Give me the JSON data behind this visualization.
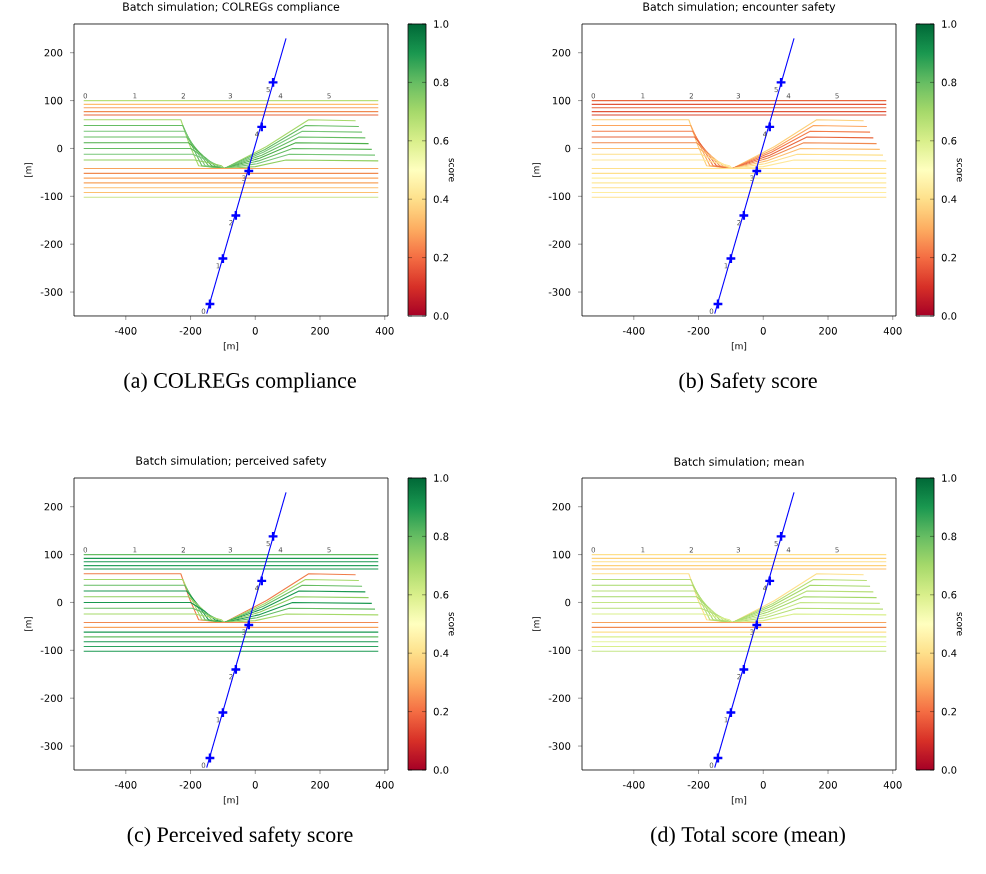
{
  "chart_data": [
    {
      "type": "line",
      "title": "Batch simulation; COLREGs compliance",
      "xlabel": "[m]",
      "ylabel": "[m]",
      "clabel": "score",
      "xlim": [
        -560,
        410
      ],
      "ylim": [
        -350,
        260
      ],
      "xticks": [
        -400,
        -200,
        0,
        200,
        400
      ],
      "yticks": [
        -300,
        -200,
        -100,
        0,
        100,
        200
      ],
      "clim": [
        0,
        1
      ],
      "cticks": [
        {
          "value": 0,
          "label": "0.0"
        },
        {
          "value": 0.2,
          "label": "0.2"
        },
        {
          "value": 0.4,
          "label": "0.4"
        },
        {
          "value": 0.6,
          "label": "0.6"
        },
        {
          "value": 0.8,
          "label": "0.8"
        },
        {
          "value": 1,
          "label": "1.0"
        }
      ],
      "annotations": [
        {
          "text": "0",
          "x": -525,
          "y": 110
        },
        {
          "text": "1",
          "x": -372,
          "y": 110
        },
        {
          "text": "2",
          "x": -222,
          "y": 110
        },
        {
          "text": "3",
          "x": -77,
          "y": 110
        },
        {
          "text": "4",
          "x": 78,
          "y": 110
        },
        {
          "text": "5",
          "x": 228,
          "y": 110
        },
        {
          "text": "0",
          "x": -160,
          "y": -340
        },
        {
          "text": "1",
          "x": -115,
          "y": -245
        },
        {
          "text": "2",
          "x": -75,
          "y": -155
        },
        {
          "text": "3",
          "x": -35,
          "y": -62
        },
        {
          "text": "4",
          "x": 5,
          "y": 30
        },
        {
          "text": "5",
          "x": 40,
          "y": 123
        },
        "(a) COLREGs compliance"
      ],
      "series": [
        {
          "x": [
            -530,
            380
          ],
          "values": [
            100,
            100
          ],
          "color": "#b7df78"
        },
        {
          "x": [
            -530,
            380
          ],
          "values": [
            92,
            92
          ],
          "color": "#fdbf6f"
        },
        {
          "x": [
            -530,
            380
          ],
          "values": [
            85,
            85
          ],
          "color": "#f7a35c"
        },
        {
          "x": [
            -530,
            380
          ],
          "values": [
            77,
            77
          ],
          "color": "#f08a50"
        },
        {
          "x": [
            -530,
            380
          ],
          "values": [
            70,
            70
          ],
          "color": "#e8663c"
        },
        {
          "x": [
            -530,
            -230,
            -205,
            -175,
            -95,
            35,
            165,
            310
          ],
          "values": [
            60,
            60,
            11,
            -36,
            -42,
            4,
            60,
            58
          ],
          "color": "#a6d96a"
        },
        {
          "x": [
            -530,
            -224,
            -195,
            -165,
            -95,
            30,
            155,
            320
          ],
          "values": [
            48,
            48,
            5,
            -36,
            -42,
            -2,
            48,
            46
          ],
          "color": "#66bd63"
        },
        {
          "x": [
            -530,
            -218,
            -185,
            -155,
            -95,
            25,
            145,
            330
          ],
          "values": [
            36,
            36,
            -1,
            -36,
            -42,
            -8,
            36,
            34
          ],
          "color": "#78c679"
        },
        {
          "x": [
            -530,
            -212,
            -175,
            -145,
            -95,
            20,
            135,
            340
          ],
          "values": [
            24,
            24,
            -7,
            -36,
            -42,
            -14,
            24,
            22
          ],
          "color": "#66bd63"
        },
        {
          "x": [
            -530,
            -206,
            -165,
            -135,
            -95,
            15,
            125,
            350
          ],
          "values": [
            12,
            12,
            -13,
            -36,
            -42,
            -20,
            12,
            10
          ],
          "color": "#4daf4a"
        },
        {
          "x": [
            -530,
            -200,
            -155,
            -125,
            -95,
            10,
            115,
            360
          ],
          "values": [
            0,
            0,
            -19,
            -36,
            -42,
            -26,
            0,
            -2
          ],
          "color": "#66bd63"
        },
        {
          "x": [
            -530,
            -194,
            -145,
            -115,
            -95,
            5,
            105,
            370
          ],
          "values": [
            -12,
            -12,
            -25,
            -36,
            -42,
            -32,
            -12,
            -14
          ],
          "color": "#78c679"
        },
        {
          "x": [
            -530,
            -188,
            -135,
            -105,
            -95,
            0,
            95,
            380
          ],
          "values": [
            -24,
            -24,
            -31,
            -36,
            -42,
            -38,
            -24,
            -26
          ],
          "color": "#91cf60"
        },
        {
          "x": [
            -530,
            380
          ],
          "values": [
            -42,
            -42
          ],
          "color": "#f7a35c"
        },
        {
          "x": [
            -530,
            380
          ],
          "values": [
            -52,
            -52
          ],
          "color": "#f08a50"
        },
        {
          "x": [
            -530,
            380
          ],
          "values": [
            -62,
            -62
          ],
          "color": "#fca55d"
        },
        {
          "x": [
            -530,
            380
          ],
          "values": [
            -72,
            -72
          ],
          "color": "#f7a35c"
        },
        {
          "x": [
            -530,
            380
          ],
          "values": [
            -82,
            -82
          ],
          "color": "#fdbf6f"
        },
        {
          "x": [
            -530,
            380
          ],
          "values": [
            -92,
            -92
          ],
          "color": "#fdbf6f"
        },
        {
          "x": [
            -530,
            380
          ],
          "values": [
            -102,
            -102
          ],
          "color": "#c9e38a"
        },
        {
          "x": [
            -150,
            95
          ],
          "values": [
            -345,
            230
          ],
          "color": "#0000ff"
        },
        {
          "type": "scatter",
          "marker": "cross",
          "x": [
            -140,
            -100,
            -60,
            -20,
            20,
            55
          ],
          "values": [
            -325,
            -230,
            -140,
            -47,
            45,
            138
          ],
          "color": "#0000ff"
        }
      ]
    },
    {
      "type": "line",
      "title": "Batch simulation; encounter safety",
      "xlabel": "[m]",
      "ylabel": "[m]",
      "clabel": "score",
      "xlim": [
        -560,
        410
      ],
      "ylim": [
        -350,
        260
      ],
      "xticks": [
        -400,
        -200,
        0,
        200,
        400
      ],
      "yticks": [
        -300,
        -200,
        -100,
        0,
        100,
        200
      ],
      "clim": [
        0,
        1
      ],
      "cticks": [
        {
          "value": 0,
          "label": "0.0"
        },
        {
          "value": 0.2,
          "label": "0.2"
        },
        {
          "value": 0.4,
          "label": "0.4"
        },
        {
          "value": 0.6,
          "label": "0.6"
        },
        {
          "value": 0.8,
          "label": "0.8"
        },
        {
          "value": 1,
          "label": "1.0"
        }
      ],
      "annotations": [
        {
          "text": "0",
          "x": -525,
          "y": 110
        },
        {
          "text": "1",
          "x": -372,
          "y": 110
        },
        {
          "text": "2",
          "x": -222,
          "y": 110
        },
        {
          "text": "3",
          "x": -77,
          "y": 110
        },
        {
          "text": "4",
          "x": 78,
          "y": 110
        },
        {
          "text": "5",
          "x": 228,
          "y": 110
        },
        {
          "text": "0",
          "x": -160,
          "y": -340
        },
        {
          "text": "1",
          "x": -115,
          "y": -245
        },
        {
          "text": "2",
          "x": -75,
          "y": -155
        },
        {
          "text": "3",
          "x": -35,
          "y": -62
        },
        {
          "text": "4",
          "x": 5,
          "y": 30
        },
        {
          "text": "5",
          "x": 40,
          "y": 123
        },
        "(b) Safety score"
      ],
      "series": [
        {
          "x": [
            -530,
            380
          ],
          "values": [
            100,
            100
          ],
          "color": "#e8663c"
        },
        {
          "x": [
            -530,
            380
          ],
          "values": [
            92,
            92
          ],
          "color": "#e0553a"
        },
        {
          "x": [
            -530,
            380
          ],
          "values": [
            85,
            85
          ],
          "color": "#e8663c"
        },
        {
          "x": [
            -530,
            380
          ],
          "values": [
            77,
            77
          ],
          "color": "#e0553a"
        },
        {
          "x": [
            -530,
            380
          ],
          "values": [
            70,
            70
          ],
          "color": "#d9472f"
        },
        {
          "x": [
            -530,
            -230,
            -205,
            -175,
            -95,
            35,
            165,
            310
          ],
          "values": [
            60,
            60,
            11,
            -36,
            -42,
            4,
            60,
            58
          ],
          "color": "#fdd07a"
        },
        {
          "x": [
            -530,
            -224,
            -195,
            -165,
            -95,
            30,
            155,
            320
          ],
          "values": [
            48,
            48,
            5,
            -36,
            -42,
            -2,
            48,
            46
          ],
          "color": "#fca55d"
        },
        {
          "x": [
            -530,
            -218,
            -185,
            -155,
            -95,
            25,
            145,
            330
          ],
          "values": [
            36,
            36,
            -1,
            -36,
            -42,
            -8,
            36,
            34
          ],
          "color": "#f47d4c"
        },
        {
          "x": [
            -530,
            -212,
            -175,
            -145,
            -95,
            20,
            135,
            340
          ],
          "values": [
            24,
            24,
            -7,
            -36,
            -42,
            -14,
            24,
            22
          ],
          "color": "#e8663c"
        },
        {
          "x": [
            -530,
            -206,
            -165,
            -135,
            -95,
            15,
            125,
            350
          ],
          "values": [
            12,
            12,
            -13,
            -36,
            -42,
            -20,
            12,
            10
          ],
          "color": "#f08a50"
        },
        {
          "x": [
            -530,
            -200,
            -155,
            -125,
            -95,
            10,
            115,
            360
          ],
          "values": [
            0,
            0,
            -19,
            -36,
            -42,
            -26,
            0,
            -2
          ],
          "color": "#fdbf6f"
        },
        {
          "x": [
            -530,
            -194,
            -145,
            -115,
            -95,
            5,
            105,
            370
          ],
          "values": [
            -12,
            -12,
            -25,
            -36,
            -42,
            -32,
            -12,
            -14
          ],
          "color": "#fee08b"
        },
        {
          "x": [
            -530,
            -188,
            -135,
            -105,
            -95,
            0,
            95,
            380
          ],
          "values": [
            -24,
            -24,
            -31,
            -36,
            -42,
            -38,
            -24,
            -26
          ],
          "color": "#fee89a"
        },
        {
          "x": [
            -530,
            380
          ],
          "values": [
            -42,
            -42
          ],
          "color": "#fee08b"
        },
        {
          "x": [
            -530,
            380
          ],
          "values": [
            -52,
            -52
          ],
          "color": "#fee08b"
        },
        {
          "x": [
            -530,
            380
          ],
          "values": [
            -62,
            -62
          ],
          "color": "#fff0a0"
        },
        {
          "x": [
            -530,
            380
          ],
          "values": [
            -72,
            -72
          ],
          "color": "#fee89a"
        },
        {
          "x": [
            -530,
            380
          ],
          "values": [
            -82,
            -82
          ],
          "color": "#fee08b"
        },
        {
          "x": [
            -530,
            380
          ],
          "values": [
            -92,
            -92
          ],
          "color": "#ffeda0"
        },
        {
          "x": [
            -530,
            380
          ],
          "values": [
            -102,
            -102
          ],
          "color": "#fee08b"
        },
        {
          "x": [
            -150,
            95
          ],
          "values": [
            -345,
            230
          ],
          "color": "#0000ff"
        },
        {
          "type": "scatter",
          "marker": "cross",
          "x": [
            -140,
            -100,
            -60,
            -20,
            20,
            55
          ],
          "values": [
            -325,
            -230,
            -140,
            -47,
            45,
            138
          ],
          "color": "#0000ff"
        }
      ]
    },
    {
      "type": "line",
      "title": "Batch simulation; perceived safety",
      "xlabel": "[m]",
      "ylabel": "[m]",
      "clabel": "score",
      "xlim": [
        -560,
        410
      ],
      "ylim": [
        -350,
        260
      ],
      "xticks": [
        -400,
        -200,
        0,
        200,
        400
      ],
      "yticks": [
        -300,
        -200,
        -100,
        0,
        100,
        200
      ],
      "clim": [
        0,
        1
      ],
      "cticks": [
        {
          "value": 0,
          "label": "0.0"
        },
        {
          "value": 0.2,
          "label": "0.2"
        },
        {
          "value": 0.4,
          "label": "0.4"
        },
        {
          "value": 0.6,
          "label": "0.6"
        },
        {
          "value": 0.8,
          "label": "0.8"
        },
        {
          "value": 1,
          "label": "1.0"
        }
      ],
      "annotations": [
        {
          "text": "0",
          "x": -525,
          "y": 110
        },
        {
          "text": "1",
          "x": -372,
          "y": 110
        },
        {
          "text": "2",
          "x": -222,
          "y": 110
        },
        {
          "text": "3",
          "x": -77,
          "y": 110
        },
        {
          "text": "4",
          "x": 78,
          "y": 110
        },
        {
          "text": "5",
          "x": 228,
          "y": 110
        },
        {
          "text": "0",
          "x": -160,
          "y": -340
        },
        {
          "text": "1",
          "x": -115,
          "y": -245
        },
        {
          "text": "2",
          "x": -75,
          "y": -155
        },
        {
          "text": "3",
          "x": -35,
          "y": -62
        },
        {
          "text": "4",
          "x": 5,
          "y": 30
        },
        {
          "text": "5",
          "x": 40,
          "y": 123
        },
        "(c) Perceived safety score"
      ],
      "series": [
        {
          "x": [
            -530,
            380
          ],
          "values": [
            100,
            100
          ],
          "color": "#66bd63"
        },
        {
          "x": [
            -530,
            380
          ],
          "values": [
            92,
            92
          ],
          "color": "#1a9850"
        },
        {
          "x": [
            -530,
            380
          ],
          "values": [
            85,
            85
          ],
          "color": "#1a9850"
        },
        {
          "x": [
            -530,
            380
          ],
          "values": [
            77,
            77
          ],
          "color": "#2ca25f"
        },
        {
          "x": [
            -530,
            380
          ],
          "values": [
            70,
            70
          ],
          "color": "#1a9850"
        },
        {
          "x": [
            -530,
            -230,
            -205,
            -175,
            -95,
            35,
            165,
            310
          ],
          "values": [
            60,
            60,
            11,
            -36,
            -42,
            4,
            60,
            58
          ],
          "color": "#f07c4a"
        },
        {
          "x": [
            -530,
            -224,
            -195,
            -165,
            -95,
            30,
            155,
            320
          ],
          "values": [
            48,
            48,
            5,
            -36,
            -42,
            -2,
            48,
            46
          ],
          "color": "#a6d96a"
        },
        {
          "x": [
            -530,
            -218,
            -185,
            -155,
            -95,
            25,
            145,
            330
          ],
          "values": [
            36,
            36,
            -1,
            -36,
            -42,
            -8,
            36,
            34
          ],
          "color": "#66bd63"
        },
        {
          "x": [
            -530,
            -212,
            -175,
            -145,
            -95,
            20,
            135,
            340
          ],
          "values": [
            24,
            24,
            -7,
            -36,
            -42,
            -14,
            24,
            22
          ],
          "color": "#1a9850"
        },
        {
          "x": [
            -530,
            -206,
            -165,
            -135,
            -95,
            15,
            125,
            350
          ],
          "values": [
            12,
            12,
            -13,
            -36,
            -42,
            -20,
            12,
            10
          ],
          "color": "#91cf60"
        },
        {
          "x": [
            -530,
            -200,
            -155,
            -125,
            -95,
            10,
            115,
            360
          ],
          "values": [
            0,
            0,
            -19,
            -36,
            -42,
            -26,
            0,
            -2
          ],
          "color": "#1a9850"
        },
        {
          "x": [
            -530,
            -194,
            -145,
            -115,
            -95,
            5,
            105,
            370
          ],
          "values": [
            -12,
            -12,
            -25,
            -36,
            -42,
            -32,
            -12,
            -14
          ],
          "color": "#66bd63"
        },
        {
          "x": [
            -530,
            -188,
            -135,
            -105,
            -95,
            0,
            95,
            380
          ],
          "values": [
            -24,
            -24,
            -31,
            -36,
            -42,
            -38,
            -24,
            -26
          ],
          "color": "#a6d96a"
        },
        {
          "x": [
            -530,
            380
          ],
          "values": [
            -42,
            -42
          ],
          "color": "#f08a50"
        },
        {
          "x": [
            -530,
            380
          ],
          "values": [
            -52,
            -52
          ],
          "color": "#f7a35c"
        },
        {
          "x": [
            -530,
            380
          ],
          "values": [
            -62,
            -62
          ],
          "color": "#1a9850"
        },
        {
          "x": [
            -530,
            380
          ],
          "values": [
            -72,
            -72
          ],
          "color": "#66bd63"
        },
        {
          "x": [
            -530,
            380
          ],
          "values": [
            -82,
            -82
          ],
          "color": "#1a9850"
        },
        {
          "x": [
            -530,
            380
          ],
          "values": [
            -92,
            -92
          ],
          "color": "#2ca25f"
        },
        {
          "x": [
            -530,
            380
          ],
          "values": [
            -102,
            -102
          ],
          "color": "#1a9850"
        },
        {
          "x": [
            -150,
            95
          ],
          "values": [
            -345,
            230
          ],
          "color": "#0000ff"
        },
        {
          "type": "scatter",
          "marker": "cross",
          "x": [
            -140,
            -100,
            -60,
            -20,
            20,
            55
          ],
          "values": [
            -325,
            -230,
            -140,
            -47,
            45,
            138
          ],
          "color": "#0000ff"
        }
      ]
    },
    {
      "type": "line",
      "title": "Batch simulation; mean",
      "xlabel": "[m]",
      "ylabel": "[m]",
      "clabel": "score",
      "xlim": [
        -560,
        410
      ],
      "ylim": [
        -350,
        260
      ],
      "xticks": [
        -400,
        -200,
        0,
        200,
        400
      ],
      "yticks": [
        -300,
        -200,
        -100,
        0,
        100,
        200
      ],
      "clim": [
        0,
        1
      ],
      "cticks": [
        {
          "value": 0,
          "label": "0.0"
        },
        {
          "value": 0.2,
          "label": "0.2"
        },
        {
          "value": 0.4,
          "label": "0.4"
        },
        {
          "value": 0.6,
          "label": "0.6"
        },
        {
          "value": 0.8,
          "label": "0.8"
        },
        {
          "value": 1,
          "label": "1.0"
        }
      ],
      "annotations": [
        {
          "text": "0",
          "x": -525,
          "y": 110
        },
        {
          "text": "1",
          "x": -372,
          "y": 110
        },
        {
          "text": "2",
          "x": -222,
          "y": 110
        },
        {
          "text": "3",
          "x": -77,
          "y": 110
        },
        {
          "text": "4",
          "x": 78,
          "y": 110
        },
        {
          "text": "5",
          "x": 228,
          "y": 110
        },
        {
          "text": "0",
          "x": -160,
          "y": -340
        },
        {
          "text": "1",
          "x": -115,
          "y": -245
        },
        {
          "text": "2",
          "x": -75,
          "y": -155
        },
        {
          "text": "3",
          "x": -35,
          "y": -62
        },
        {
          "text": "4",
          "x": 5,
          "y": 30
        },
        {
          "text": "5",
          "x": 40,
          "y": 123
        },
        "(d) Total score (mean)"
      ],
      "series": [
        {
          "x": [
            -530,
            380
          ],
          "values": [
            100,
            100
          ],
          "color": "#fee08b"
        },
        {
          "x": [
            -530,
            380
          ],
          "values": [
            92,
            92
          ],
          "color": "#fdd17a"
        },
        {
          "x": [
            -530,
            380
          ],
          "values": [
            85,
            85
          ],
          "color": "#fee08b"
        },
        {
          "x": [
            -530,
            380
          ],
          "values": [
            77,
            77
          ],
          "color": "#fdd17a"
        },
        {
          "x": [
            -530,
            380
          ],
          "values": [
            70,
            70
          ],
          "color": "#fdc06a"
        },
        {
          "x": [
            -530,
            -230,
            -205,
            -175,
            -95,
            35,
            165,
            310
          ],
          "values": [
            60,
            60,
            11,
            -36,
            -42,
            4,
            60,
            58
          ],
          "color": "#fee08b"
        },
        {
          "x": [
            -530,
            -224,
            -195,
            -165,
            -95,
            30,
            155,
            320
          ],
          "values": [
            48,
            48,
            5,
            -36,
            -42,
            -2,
            48,
            46
          ],
          "color": "#b7df78"
        },
        {
          "x": [
            -530,
            -218,
            -185,
            -155,
            -95,
            25,
            145,
            330
          ],
          "values": [
            36,
            36,
            -1,
            -36,
            -42,
            -8,
            36,
            34
          ],
          "color": "#a6d96a"
        },
        {
          "x": [
            -530,
            -212,
            -175,
            -145,
            -95,
            20,
            135,
            340
          ],
          "values": [
            24,
            24,
            -7,
            -36,
            -42,
            -14,
            24,
            22
          ],
          "color": "#b7df78"
        },
        {
          "x": [
            -530,
            -206,
            -165,
            -135,
            -95,
            15,
            125,
            350
          ],
          "values": [
            12,
            12,
            -13,
            -36,
            -42,
            -20,
            12,
            10
          ],
          "color": "#a6d96a"
        },
        {
          "x": [
            -530,
            -200,
            -155,
            -125,
            -95,
            10,
            115,
            360
          ],
          "values": [
            0,
            0,
            -19,
            -36,
            -42,
            -26,
            0,
            -2
          ],
          "color": "#c4e687"
        },
        {
          "x": [
            -530,
            -194,
            -145,
            -115,
            -95,
            5,
            105,
            370
          ],
          "values": [
            -12,
            -12,
            -25,
            -36,
            -42,
            -32,
            -12,
            -14
          ],
          "color": "#b7df78"
        },
        {
          "x": [
            -530,
            -188,
            -135,
            -105,
            -95,
            0,
            95,
            380
          ],
          "values": [
            -24,
            -24,
            -31,
            -36,
            -42,
            -38,
            -24,
            -26
          ],
          "color": "#d9ef8b"
        },
        {
          "x": [
            -530,
            380
          ],
          "values": [
            -42,
            -42
          ],
          "color": "#f7a35c"
        },
        {
          "x": [
            -530,
            380
          ],
          "values": [
            -52,
            -52
          ],
          "color": "#f08a50"
        },
        {
          "x": [
            -530,
            380
          ],
          "values": [
            -62,
            -62
          ],
          "color": "#fee08b"
        },
        {
          "x": [
            -530,
            380
          ],
          "values": [
            -72,
            -72
          ],
          "color": "#d9ef8b"
        },
        {
          "x": [
            -530,
            380
          ],
          "values": [
            -82,
            -82
          ],
          "color": "#e6f59d"
        },
        {
          "x": [
            -530,
            380
          ],
          "values": [
            -92,
            -92
          ],
          "color": "#d9ef8b"
        },
        {
          "x": [
            -530,
            380
          ],
          "values": [
            -102,
            -102
          ],
          "color": "#c4e687"
        },
        {
          "x": [
            -150,
            95
          ],
          "values": [
            -345,
            230
          ],
          "color": "#0000ff"
        },
        {
          "type": "scatter",
          "marker": "cross",
          "x": [
            -140,
            -100,
            -60,
            -20,
            20,
            55
          ],
          "values": [
            -325,
            -230,
            -140,
            -47,
            45,
            138
          ],
          "color": "#0000ff"
        }
      ]
    }
  ]
}
